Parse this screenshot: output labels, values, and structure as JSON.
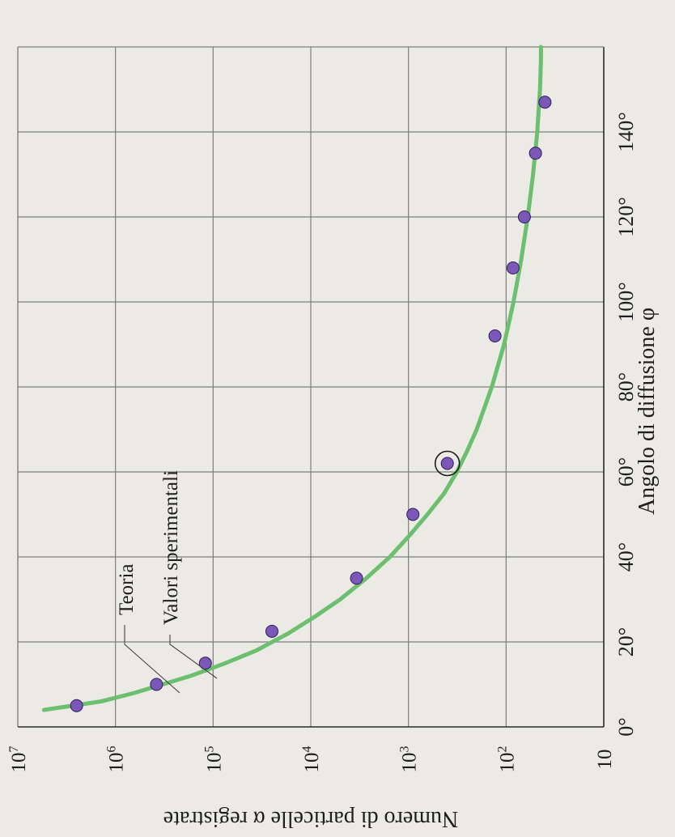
{
  "chart_data": {
    "type": "scatter",
    "orientation": "rotated-90-clockwise",
    "xlabel": "Angolo di diffusione φ",
    "ylabel": "Numero di particelle α registrate",
    "x_ticks": [
      "0°",
      "20°",
      "40°",
      "60°",
      "80°",
      "100°",
      "120°",
      "140°"
    ],
    "y_ticks": [
      {
        "base": "10",
        "exp": ""
      },
      {
        "base": "10",
        "exp": "2"
      },
      {
        "base": "10",
        "exp": "3"
      },
      {
        "base": "10",
        "exp": "4"
      },
      {
        "base": "10",
        "exp": "5"
      },
      {
        "base": "10",
        "exp": "6"
      },
      {
        "base": "10",
        "exp": "7"
      }
    ],
    "xlim": [
      0,
      160
    ],
    "ylim": [
      10,
      10000000
    ],
    "yscale": "log",
    "grid": true,
    "series": [
      {
        "name": "Teoria",
        "type": "line",
        "color": "#6bbf6e",
        "x": [
          4,
          6,
          8,
          10,
          12,
          15,
          18,
          22,
          26,
          30,
          35,
          40,
          45,
          50,
          55,
          60,
          65,
          70,
          80,
          90,
          100,
          110,
          120,
          130,
          140,
          150,
          157
        ],
        "y": [
          5400000,
          1400000,
          640000,
          330000,
          170000,
          75000,
          36000,
          17000,
          9000,
          5000,
          2700,
          1550,
          980,
          640,
          430,
          320,
          250,
          200,
          140,
          105,
          84,
          70,
          60,
          53,
          48,
          45,
          44
        ]
      },
      {
        "name": "Valori sperimentali",
        "type": "scatter",
        "color": "#7b58b8",
        "x": [
          5,
          10,
          15,
          22.5,
          35,
          50,
          62,
          92,
          108,
          120,
          135,
          147
        ],
        "y": [
          2500000,
          380000,
          120000,
          25000,
          3400,
          900,
          400,
          130,
          85,
          65,
          50,
          40
        ]
      }
    ],
    "highlight": {
      "x": 62,
      "y": 400
    },
    "annotations": [
      "Teoria",
      "Valori sperimentali"
    ]
  },
  "colors": {
    "background": "#eceae5",
    "grid": "#7d7d7d",
    "curve": "#6bbf6e",
    "points": "#7b58b8"
  }
}
